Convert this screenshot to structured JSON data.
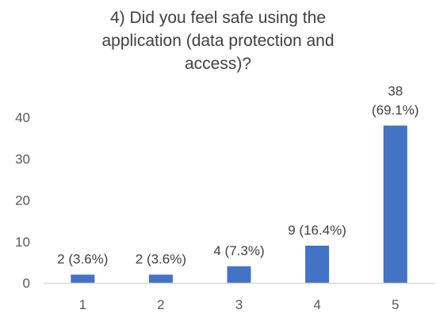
{
  "chart_data": {
    "type": "bar",
    "title_lines": [
      "4) Did you feel safe using the",
      "application (data protection and",
      "access)?"
    ],
    "categories": [
      "1",
      "2",
      "3",
      "4",
      "5"
    ],
    "values": [
      2,
      2,
      4,
      9,
      38
    ],
    "data_labels": [
      [
        "2 (3.6%)"
      ],
      [
        "2 (3.6%)"
      ],
      [
        "4 (7.3%)"
      ],
      [
        "9 (16.4%)"
      ],
      [
        "38",
        "(69.1%)"
      ]
    ],
    "ylim": [
      0,
      40
    ],
    "yticks": [
      "0",
      "10",
      "20",
      "30",
      "40"
    ],
    "bar_color": "#4472C4",
    "axis_color": "#D9D9D9",
    "grid": false,
    "legend": "none"
  }
}
